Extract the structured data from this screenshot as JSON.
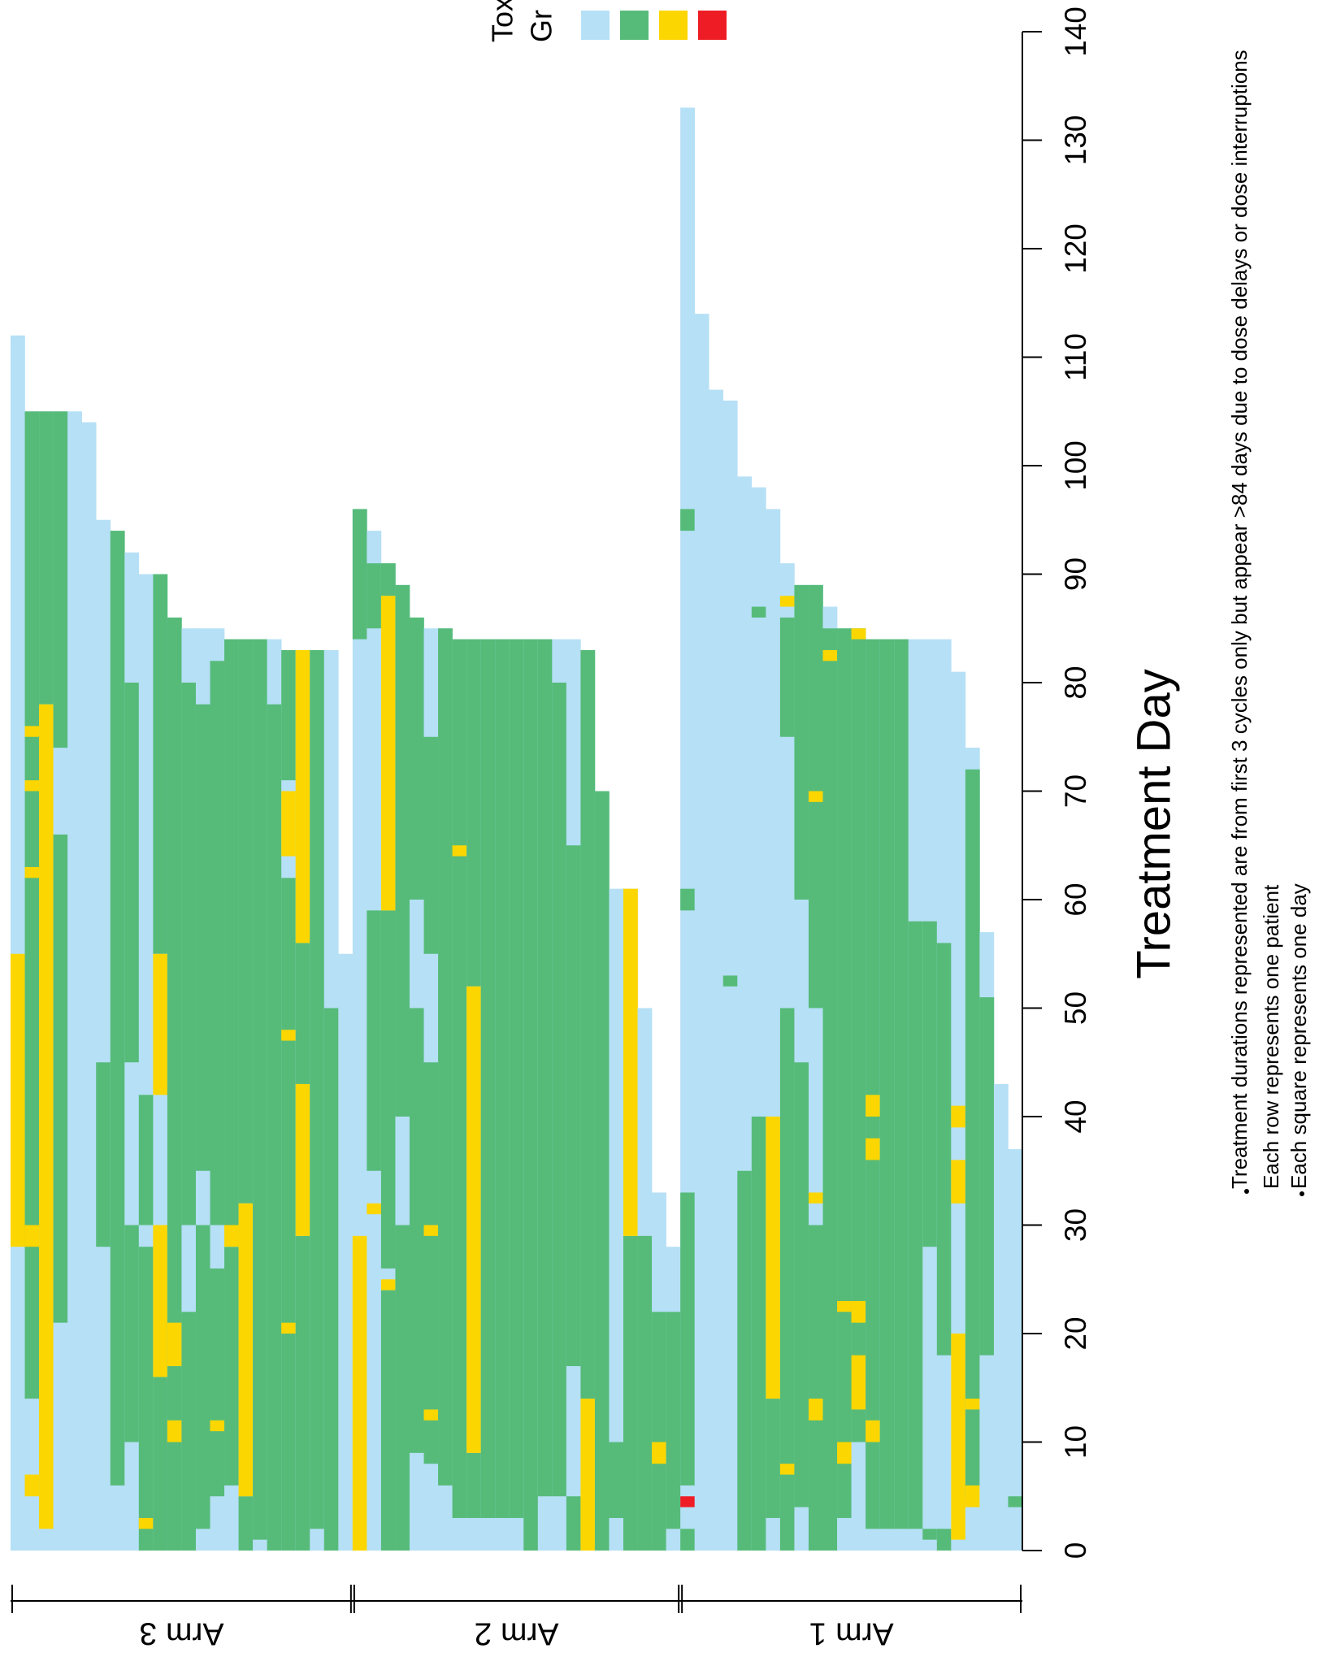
{
  "chart_data": {
    "type": "heatmap",
    "xlabel": "Treatment Day",
    "xlim": [
      0,
      140
    ],
    "xticks": [
      0,
      10,
      20,
      30,
      40,
      50,
      60,
      70,
      80,
      90,
      100,
      110,
      120,
      130,
      140
    ],
    "legend": {
      "title": [
        "Tox",
        "Gr"
      ],
      "colors": [
        "#b6e0f6",
        "#56bb79",
        "#fcd600",
        "#ee1c25"
      ]
    },
    "notes": [
      "Treatment durations represented are from first 3 cycles only but appear >84 days due to dose delays or dose interruptions",
      "Each row represents one patient",
      "Each square represents one day"
    ],
    "arms": [
      {
        "name": "Arm 3",
        "patients": [
          {
            "duration": 112,
            "grade3": [
              [
                28,
                55
              ]
            ]
          },
          {
            "duration": 105,
            "grade2": [
              [
                14,
                105
              ]
            ],
            "grade3": [
              [
                5,
                7
              ],
              [
                28,
                30
              ],
              [
                62,
                63
              ],
              [
                70,
                71
              ],
              [
                75,
                76
              ]
            ]
          },
          {
            "duration": 105,
            "grade2": [
              [
                78,
                105
              ]
            ],
            "grade3": [
              [
                2,
                78
              ]
            ]
          },
          {
            "duration": 105,
            "grade2": [
              [
                21,
                66
              ],
              [
                74,
                105
              ]
            ]
          },
          {
            "duration": 105
          },
          {
            "duration": 104
          },
          {
            "duration": 95,
            "grade2": [
              [
                28,
                45
              ]
            ]
          },
          {
            "duration": 94,
            "grade2": [
              [
                6,
                94
              ]
            ]
          },
          {
            "duration": 92,
            "grade2": [
              [
                10,
                30
              ],
              [
                45,
                80
              ]
            ]
          },
          {
            "duration": 90,
            "grade2": [
              [
                0,
                28
              ],
              [
                30,
                42
              ]
            ],
            "grade3": [
              [
                2,
                3
              ]
            ]
          },
          {
            "duration": 90,
            "grade2": [
              [
                0,
                16
              ],
              [
                55,
                90
              ]
            ],
            "grade3": [
              [
                16,
                30
              ],
              [
                42,
                55
              ]
            ]
          },
          {
            "duration": 86,
            "grade2": [
              [
                0,
                86
              ]
            ],
            "grade3": [
              [
                10,
                12
              ],
              [
                17,
                21
              ]
            ]
          },
          {
            "duration": 85,
            "grade2": [
              [
                0,
                22
              ],
              [
                30,
                80
              ]
            ]
          },
          {
            "duration": 85,
            "grade2": [
              [
                2,
                30
              ],
              [
                35,
                78
              ]
            ]
          },
          {
            "duration": 85,
            "grade2": [
              [
                5,
                26
              ],
              [
                30,
                82
              ]
            ],
            "grade3": [
              [
                11,
                12
              ]
            ]
          },
          {
            "duration": 84,
            "grade2": [
              [
                6,
                28
              ],
              [
                30,
                84
              ]
            ],
            "grade3": [
              [
                28,
                30
              ]
            ]
          },
          {
            "duration": 84,
            "grade2": [
              [
                0,
                5
              ],
              [
                32,
                84
              ]
            ],
            "grade3": [
              [
                5,
                32
              ]
            ]
          },
          {
            "duration": 84,
            "grade2": [
              [
                1,
                84
              ]
            ]
          },
          {
            "duration": 84,
            "grade2": [
              [
                0,
                78
              ]
            ]
          },
          {
            "duration": 83,
            "grade2": [
              [
                0,
                62
              ],
              [
                71,
                83
              ]
            ],
            "grade3": [
              [
                20,
                21
              ],
              [
                47,
                48
              ],
              [
                64,
                70
              ]
            ]
          },
          {
            "duration": 83,
            "grade2": [
              [
                0,
                29
              ],
              [
                43,
                56
              ]
            ],
            "grade3": [
              [
                29,
                43
              ],
              [
                56,
                83
              ]
            ]
          },
          {
            "duration": 83,
            "grade2": [
              [
                2,
                83
              ]
            ]
          },
          {
            "duration": 83,
            "grade2": [
              [
                0,
                50
              ]
            ]
          },
          {
            "duration": 55
          }
        ]
      },
      {
        "name": "Arm 2",
        "patients": [
          {
            "duration": 96,
            "grade2": [
              [
                84,
                96
              ]
            ],
            "grade3": [
              [
                0,
                29
              ]
            ]
          },
          {
            "duration": 94,
            "grade2": [
              [
                35,
                59
              ],
              [
                85,
                91
              ]
            ],
            "grade3": [
              [
                31,
                32
              ]
            ]
          },
          {
            "duration": 91,
            "grade2": [
              [
                0,
                24
              ],
              [
                26,
                59
              ],
              [
                88,
                91
              ]
            ],
            "grade3": [
              [
                24,
                25
              ],
              [
                59,
                88
              ]
            ]
          },
          {
            "duration": 89,
            "grade2": [
              [
                0,
                30
              ],
              [
                40,
                89
              ]
            ]
          },
          {
            "duration": 86,
            "grade2": [
              [
                9,
                50
              ],
              [
                60,
                86
              ]
            ]
          },
          {
            "duration": 85,
            "grade2": [
              [
                8,
                45
              ],
              [
                55,
                75
              ]
            ],
            "grade3": [
              [
                12,
                13
              ],
              [
                29,
                30
              ]
            ]
          },
          {
            "duration": 85,
            "grade2": [
              [
                6,
                85
              ]
            ]
          },
          {
            "duration": 84,
            "grade2": [
              [
                3,
                84
              ]
            ],
            "grade3": [
              [
                64,
                65
              ]
            ]
          },
          {
            "duration": 84,
            "grade2": [
              [
                3,
                9
              ],
              [
                52,
                84
              ]
            ],
            "grade3": [
              [
                9,
                52
              ]
            ]
          },
          {
            "duration": 84,
            "grade2": [
              [
                3,
                84
              ]
            ]
          },
          {
            "duration": 84,
            "grade2": [
              [
                3,
                84
              ]
            ]
          },
          {
            "duration": 84,
            "grade2": [
              [
                3,
                84
              ]
            ]
          },
          {
            "duration": 84,
            "grade2": [
              [
                0,
                84
              ]
            ]
          },
          {
            "duration": 84,
            "grade2": [
              [
                5,
                84
              ]
            ]
          },
          {
            "duration": 84,
            "grade2": [
              [
                5,
                80
              ]
            ]
          },
          {
            "duration": 84,
            "grade2": [
              [
                0,
                5
              ],
              [
                17,
                65
              ]
            ]
          },
          {
            "duration": 83,
            "grade2": [
              [
                14,
                83
              ]
            ],
            "grade3": [
              [
                0,
                14
              ]
            ]
          },
          {
            "duration": 70,
            "grade2": [
              [
                0,
                70
              ]
            ]
          },
          {
            "duration": 61,
            "grade2": [
              [
                3,
                10
              ]
            ]
          },
          {
            "duration": 61,
            "grade2": [
              [
                0,
                29
              ]
            ],
            "grade3": [
              [
                29,
                61
              ]
            ]
          },
          {
            "duration": 50,
            "grade2": [
              [
                0,
                29
              ]
            ]
          },
          {
            "duration": 33,
            "grade2": [
              [
                0,
                22
              ]
            ],
            "grade3": [
              [
                8,
                10
              ]
            ]
          },
          {
            "duration": 28,
            "grade2": [
              [
                2,
                22
              ]
            ]
          }
        ]
      },
      {
        "name": "Arm 1",
        "patients": [
          {
            "duration": 133,
            "grade2": [
              [
                0,
                2
              ],
              [
                6,
                33
              ],
              [
                59,
                61
              ],
              [
                94,
                96
              ]
            ],
            "grade4": [
              [
                4,
                5
              ]
            ]
          },
          {
            "duration": 114
          },
          {
            "duration": 107
          },
          {
            "duration": 106,
            "grade2": [
              [
                52,
                53
              ]
            ]
          },
          {
            "duration": 99,
            "grade2": [
              [
                0,
                35
              ]
            ]
          },
          {
            "duration": 98,
            "grade2": [
              [
                0,
                40
              ],
              [
                86,
                87
              ]
            ]
          },
          {
            "duration": 96,
            "grade2": [
              [
                3,
                14
              ]
            ],
            "grade3": [
              [
                14,
                40
              ]
            ]
          },
          {
            "duration": 91,
            "grade2": [
              [
                0,
                50
              ],
              [
                75,
                86
              ]
            ],
            "grade3": [
              [
                7,
                8
              ],
              [
                87,
                88
              ]
            ]
          },
          {
            "duration": 89,
            "grade2": [
              [
                4,
                45
              ],
              [
                60,
                89
              ]
            ]
          },
          {
            "duration": 89,
            "grade2": [
              [
                0,
                30
              ],
              [
                50,
                89
              ]
            ],
            "grade3": [
              [
                12,
                14
              ],
              [
                32,
                33
              ],
              [
                69,
                70
              ]
            ]
          },
          {
            "duration": 87,
            "grade2": [
              [
                0,
                85
              ]
            ],
            "grade3": [
              [
                82,
                83
              ]
            ]
          },
          {
            "duration": 85,
            "grade2": [
              [
                3,
                85
              ]
            ],
            "grade3": [
              [
                8,
                10
              ],
              [
                22,
                23
              ]
            ]
          },
          {
            "duration": 85,
            "grade2": [
              [
                10,
                85
              ]
            ],
            "grade3": [
              [
                13,
                18
              ],
              [
                21,
                23
              ],
              [
                84,
                85
              ]
            ]
          },
          {
            "duration": 84,
            "grade2": [
              [
                2,
                84
              ]
            ],
            "grade3": [
              [
                10,
                12
              ],
              [
                36,
                38
              ],
              [
                40,
                42
              ]
            ]
          },
          {
            "duration": 84,
            "grade2": [
              [
                2,
                84
              ]
            ]
          },
          {
            "duration": 84,
            "grade2": [
              [
                2,
                84
              ]
            ]
          },
          {
            "duration": 84,
            "grade2": [
              [
                2,
                58
              ]
            ]
          },
          {
            "duration": 84,
            "grade2": [
              [
                1,
                2
              ],
              [
                28,
                58
              ]
            ]
          },
          {
            "duration": 84,
            "grade2": [
              [
                0,
                2
              ],
              [
                18,
                56
              ]
            ]
          },
          {
            "duration": 81,
            "grade3": [
              [
                1,
                20
              ],
              [
                32,
                36
              ],
              [
                39,
                41
              ]
            ]
          },
          {
            "duration": 74,
            "grade2": [
              [
                5,
                72
              ]
            ],
            "grade3": [
              [
                4,
                6
              ],
              [
                13,
                14
              ]
            ]
          },
          {
            "duration": 57,
            "grade2": [
              [
                18,
                51
              ]
            ]
          },
          {
            "duration": 43
          },
          {
            "duration": 37,
            "grade2": [
              [
                4,
                5
              ]
            ]
          }
        ]
      }
    ]
  }
}
